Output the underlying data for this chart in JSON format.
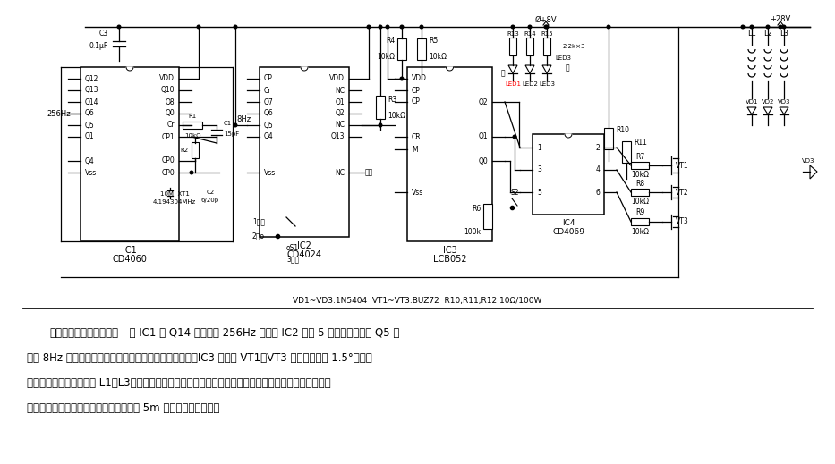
{
  "bg_color": "#ffffff",
  "fig_width": 9.33,
  "fig_height": 5.19,
  "dpi": 100,
  "component_note": "VD1~VD3:1N5404  VT1~VT3:BUZ72  R10,R11,R12:10Ω/100W",
  "title_bold": "建筑钟步进电机驱动电路",
  "desc_line1": "  由 IC1 的 Q14 端输出的 256Hz 方波送 IC2 进行 5 次二分频后由其 Q5 端",
  "desc_line2": "输出 8Hz 方波信号，去推动三相六拍步进电机驱动电路。IC3 输出经 VT1－VT3 驱动步距角为 1.5°的三相",
  "desc_line3": "六拍步进电机的三组线圈 L1～L3。步进电机以每分钟两周通过浡轮涡杆变速带动分针，再由齿轮组带动时",
  "desc_line4": "针，完成走时过程。此电路可驱动直径达 5m 的巨型建筑钟走时。",
  "fanzhuang": "反转",
  "zhengchang": "正常",
  "ting": "停",
  "kuaisu": "快速",
  "hong": "红",
  "lv": "绿"
}
